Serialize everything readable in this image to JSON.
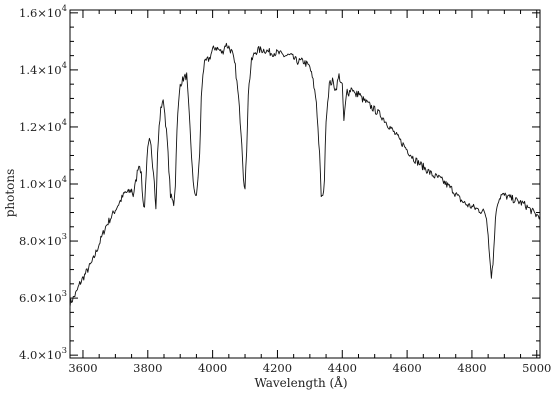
{
  "chart_data": {
    "type": "line",
    "xlabel": "Wavelength (Å)",
    "ylabel": "photons",
    "xlim": [
      3560,
      5010
    ],
    "ylim": [
      3900,
      16100
    ],
    "grid": false,
    "x_ticks": [
      {
        "value": 3600,
        "label": "3600"
      },
      {
        "value": 3800,
        "label": "3800"
      },
      {
        "value": 4000,
        "label": "4000"
      },
      {
        "value": 4200,
        "label": "4200"
      },
      {
        "value": 4400,
        "label": "4400"
      },
      {
        "value": 4600,
        "label": "4600"
      },
      {
        "value": 4800,
        "label": "4800"
      },
      {
        "value": 5000,
        "label": "5000"
      }
    ],
    "y_ticks": [
      {
        "value": 4000,
        "mantissa": "4.0",
        "exponent": "3"
      },
      {
        "value": 6000,
        "mantissa": "6.0",
        "exponent": "3"
      },
      {
        "value": 8000,
        "mantissa": "8.0",
        "exponent": "3"
      },
      {
        "value": 10000,
        "mantissa": "1.0",
        "exponent": "4"
      },
      {
        "value": 12000,
        "mantissa": "1.2",
        "exponent": "4"
      },
      {
        "value": 14000,
        "mantissa": "1.4",
        "exponent": "4"
      },
      {
        "value": 16000,
        "mantissa": "1.6",
        "exponent": "4"
      }
    ],
    "x": [
      3560,
      3570,
      3580,
      3590,
      3600,
      3610,
      3620,
      3630,
      3640,
      3650,
      3660,
      3670,
      3680,
      3690,
      3700,
      3710,
      3720,
      3730,
      3740,
      3750,
      3755,
      3760,
      3765,
      3770,
      3775,
      3780,
      3785,
      3790,
      3795,
      3800,
      3805,
      3810,
      3815,
      3820,
      3825,
      3830,
      3835,
      3840,
      3845,
      3850,
      3860,
      3870,
      3880,
      3885,
      3890,
      3895,
      3900,
      3910,
      3920,
      3930,
      3940,
      3950,
      3960,
      3965,
      3970,
      3975,
      3980,
      3990,
      4000,
      4010,
      4020,
      4030,
      4040,
      4050,
      4060,
      4070,
      4080,
      4090,
      4095,
      4100,
      4105,
      4110,
      4120,
      4130,
      4140,
      4150,
      4160,
      4180,
      4200,
      4220,
      4240,
      4260,
      4280,
      4300,
      4310,
      4320,
      4330,
      4335,
      4340,
      4345,
      4350,
      4360,
      4370,
      4380,
      4390,
      4400,
      4405,
      4410,
      4415,
      4420,
      4430,
      4440,
      4450,
      4460,
      4480,
      4500,
      4520,
      4540,
      4560,
      4580,
      4600,
      4620,
      4640,
      4660,
      4680,
      4700,
      4720,
      4740,
      4760,
      4780,
      4800,
      4820,
      4830,
      4840,
      4845,
      4850,
      4855,
      4860,
      4865,
      4870,
      4875,
      4880,
      4890,
      4900,
      4920,
      4940,
      4960,
      4980,
      5000,
      5010
    ],
    "y": [
      5800,
      6000,
      6200,
      6500,
      6700,
      6900,
      7100,
      7300,
      7600,
      7900,
      8200,
      8500,
      8700,
      8900,
      9100,
      9300,
      9500,
      9700,
      9700,
      9800,
      9600,
      9900,
      10200,
      10600,
      10700,
      10300,
      9400,
      9200,
      10400,
      11200,
      11500,
      11300,
      10700,
      10200,
      9100,
      11000,
      12000,
      12600,
      12900,
      12800,
      11500,
      9600,
      9300,
      10000,
      12000,
      12800,
      13500,
      13700,
      13800,
      12000,
      10000,
      9500,
      11000,
      13000,
      13900,
      14200,
      14300,
      14400,
      14700,
      14800,
      14700,
      14600,
      14900,
      14800,
      14600,
      14100,
      13000,
      11500,
      10300,
      9800,
      11200,
      13200,
      14300,
      14600,
      14700,
      14700,
      14700,
      14600,
      14600,
      14500,
      14500,
      14300,
      14300,
      14100,
      13600,
      12900,
      11000,
      9600,
      9500,
      10200,
      12300,
      13500,
      13600,
      13300,
      13800,
      13400,
      12200,
      12800,
      13300,
      13200,
      13400,
      13100,
      13200,
      13000,
      12800,
      12600,
      12400,
      12100,
      11800,
      11500,
      11200,
      10900,
      10700,
      10500,
      10300,
      10200,
      10000,
      9800,
      9500,
      9300,
      9200,
      9100,
      9050,
      9000,
      8800,
      8300,
      7400,
      6800,
      7200,
      8300,
      9100,
      9400,
      9600,
      9600,
      9500,
      9400,
      9300,
      9100,
      8900,
      8900
    ]
  }
}
